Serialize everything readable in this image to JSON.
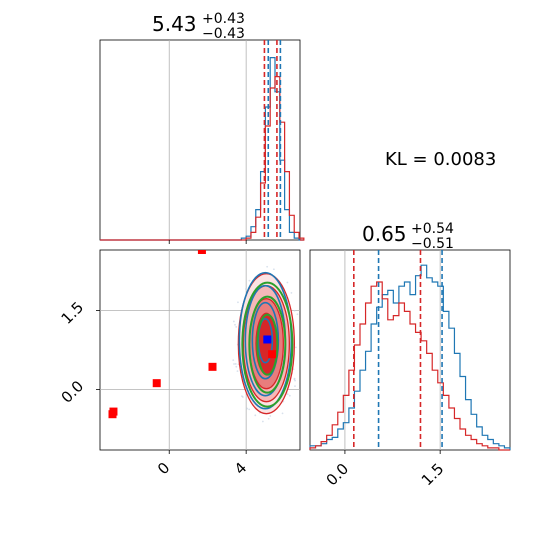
{
  "chart_data": [
    {
      "type": "histogram",
      "title": {
        "value": "5.43",
        "plus": "+0.43",
        "minus": "−0.43"
      },
      "xlim": [
        -3.6,
        6.8
      ],
      "x_ticks": [
        0,
        4
      ],
      "grid": true,
      "bins_x": [
        3.5,
        3.75,
        4.0,
        4.25,
        4.5,
        4.75,
        5.0,
        5.25,
        5.5,
        5.75,
        6.0,
        6.25,
        6.5,
        6.75
      ],
      "series": [
        {
          "color": "#1f77b4",
          "heights": [
            0.0,
            0.01,
            0.02,
            0.07,
            0.16,
            0.36,
            0.7,
            0.96,
            0.78,
            0.42,
            0.16,
            0.04,
            0.01,
            0.0
          ]
        },
        {
          "color": "#d62728",
          "heights": [
            0.0,
            0.0,
            0.01,
            0.04,
            0.12,
            0.3,
            0.6,
            0.8,
            0.86,
            0.62,
            0.36,
            0.13,
            0.04,
            0.01
          ]
        }
      ],
      "vlines": [
        {
          "x": 4.95,
          "color": "#d62728"
        },
        {
          "x": 5.15,
          "color": "#1f77b4"
        },
        {
          "x": 5.6,
          "color": "#d62728"
        },
        {
          "x": 5.78,
          "color": "#1f77b4"
        }
      ]
    },
    {
      "type": "scatter",
      "xlim": [
        -3.6,
        6.8
      ],
      "ylim": [
        -1.15,
        2.65
      ],
      "x_ticks": [
        0,
        4
      ],
      "y_ticks": [
        0.0,
        1.5
      ],
      "grid": true,
      "red_points": [
        [
          -2.9,
          -0.42
        ],
        [
          -2.95,
          -0.47
        ],
        [
          -0.65,
          0.12
        ],
        [
          2.25,
          0.43
        ],
        [
          1.7,
          2.65
        ],
        [
          5.35,
          0.67
        ]
      ],
      "blue_point": [
        5.1,
        0.95
      ],
      "contours": {
        "center": [
          5.05,
          0.87
        ],
        "color_red": "#d62728",
        "color_blue": "#1f77b4",
        "color_green": "#2ca02c"
      }
    },
    {
      "type": "histogram",
      "title": {
        "value": "0.65",
        "plus": "+0.54",
        "minus": "−0.51"
      },
      "xlim": [
        -0.55,
        2.6
      ],
      "x_ticks": [
        0.0,
        1.5
      ],
      "grid": true,
      "series": [
        {
          "color": "#1f77b4",
          "heights": [
            0.02,
            0.02,
            0.03,
            0.05,
            0.06,
            0.1,
            0.13,
            0.2,
            0.28,
            0.38,
            0.47,
            0.6,
            0.68,
            0.74,
            0.76,
            0.7,
            0.78,
            0.8,
            0.74,
            0.83,
            0.88,
            0.82,
            0.8,
            0.78,
            0.66,
            0.58,
            0.46,
            0.35,
            0.24,
            0.17,
            0.11,
            0.07,
            0.05,
            0.03,
            0.02,
            0.01
          ]
        },
        {
          "color": "#d62728",
          "heights": [
            0.01,
            0.02,
            0.04,
            0.07,
            0.12,
            0.18,
            0.26,
            0.38,
            0.5,
            0.6,
            0.7,
            0.78,
            0.8,
            0.72,
            0.62,
            0.64,
            0.7,
            0.66,
            0.6,
            0.56,
            0.52,
            0.46,
            0.38,
            0.32,
            0.26,
            0.2,
            0.15,
            0.1,
            0.07,
            0.05,
            0.03,
            0.02,
            0.01,
            0.01,
            0.0,
            0.0
          ]
        }
      ],
      "vlines": [
        {
          "x": 0.14,
          "color": "#d62728"
        },
        {
          "x": 0.53,
          "color": "#1f77b4"
        },
        {
          "x": 1.19,
          "color": "#d62728"
        },
        {
          "x": 1.53,
          "color": "#1f77b4"
        }
      ]
    }
  ],
  "annotation": "KL = 0.0083",
  "labels": {
    "ax1_title": "5.43",
    "ax1_sup": "+0.43",
    "ax1_sub": "−0.43",
    "ax3_title": "0.65",
    "ax3_sup": "+0.54",
    "ax3_sub": "−0.51",
    "ax2_xtick_0": "0",
    "ax2_xtick_1": "4",
    "ax2_ytick_0": "0.0",
    "ax2_ytick_1": "1.5",
    "ax3_xtick_0": "0.0",
    "ax3_xtick_1": "1.5"
  }
}
